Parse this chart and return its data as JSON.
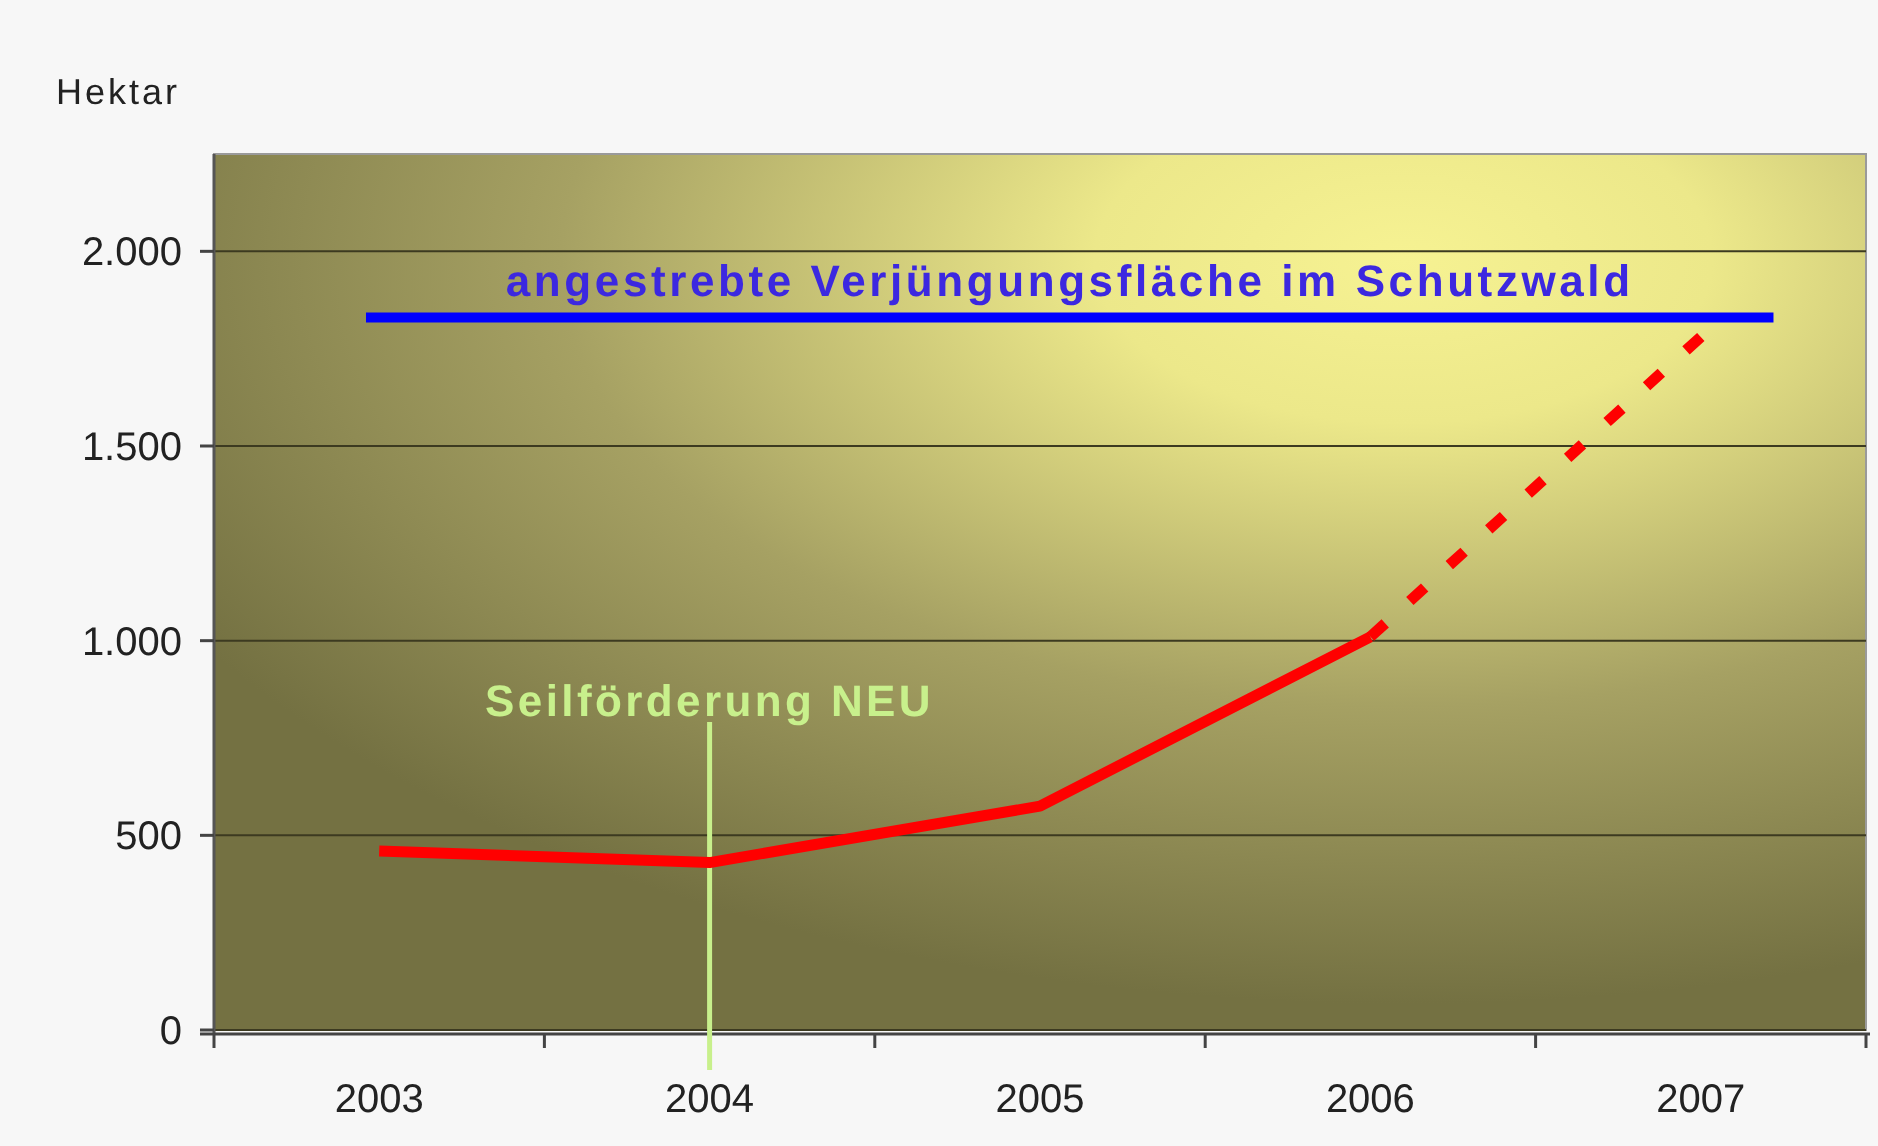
{
  "chart_data": {
    "type": "line",
    "ylabel": "Hektar",
    "categories": [
      "2003",
      "2004",
      "2005",
      "2006",
      "2007"
    ],
    "series": [
      {
        "color": "#ff0000",
        "values": [
          460,
          430,
          575,
          1010,
          null
        ],
        "line_style": "solid"
      },
      {
        "color": "#ff0000",
        "values": [
          null,
          null,
          null,
          1010,
          1780
        ],
        "line_style": "dashed"
      }
    ],
    "ylim": [
      0,
      2250
    ],
    "yticks": [
      0,
      500,
      {
        "value": 1000,
        "label": "1.000"
      },
      {
        "value": 1500,
        "label": "1.500"
      },
      {
        "value": 2000,
        "label": "2.000"
      }
    ],
    "grid": "y",
    "ref_lines": [
      {
        "axis": "y",
        "value": 1830,
        "label": "angestrebte Verjüngungsfläche im Schutzwald",
        "color": "#0000ff"
      },
      {
        "axis": "x",
        "value": "2004",
        "label": "Seilförderung NEU",
        "color": "#c8f08c"
      }
    ]
  }
}
